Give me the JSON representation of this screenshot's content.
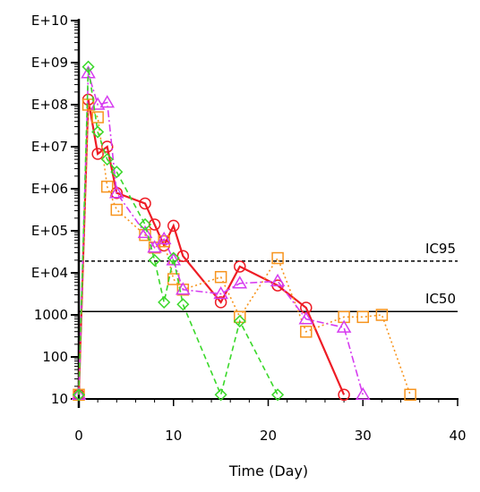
{
  "chart_data": {
    "type": "line",
    "title": "",
    "xlabel": "Time (Day)",
    "ylabel": "",
    "xlim": [
      0,
      40
    ],
    "ylim_log10": [
      1,
      10
    ],
    "y_scale": "log",
    "grid": false,
    "x_ticks": [
      0,
      10,
      20,
      30,
      40
    ],
    "x_tick_labels": [
      "0",
      "10",
      "20",
      "30",
      "40"
    ],
    "y_ticks": [
      1,
      2,
      3,
      4,
      5,
      6,
      7,
      8,
      9,
      10
    ],
    "y_tick_labels": [
      "10",
      "100",
      "1000",
      "E+04",
      "E+05",
      "E+06",
      "E+07",
      "E+08",
      "E+09",
      "E+10"
    ],
    "reference_lines": [
      {
        "label": "IC95",
        "log10_value": 4.28,
        "style": "dashed",
        "color": "#000000"
      },
      {
        "label": "IC50",
        "log10_value": 3.08,
        "style": "solid",
        "color": "#000000"
      }
    ],
    "series": [
      {
        "color": "#ee1c25",
        "marker": "circle",
        "line": "solid",
        "x": [
          0,
          1,
          2,
          3,
          4,
          7,
          8,
          9,
          10,
          11,
          15,
          17,
          21,
          24,
          28
        ],
        "log10_y": [
          1.1,
          8.12,
          6.83,
          7.0,
          5.9,
          5.65,
          5.15,
          4.65,
          5.12,
          4.4,
          3.3,
          4.15,
          3.7,
          3.17,
          1.1
        ]
      },
      {
        "color": "#f7941d",
        "marker": "square",
        "line": "dotted",
        "x": [
          0,
          1,
          2,
          3,
          4,
          7,
          8,
          9,
          10,
          11,
          15,
          17,
          21,
          24,
          28,
          30,
          32,
          35
        ],
        "log10_y": [
          1.1,
          8.0,
          7.7,
          6.05,
          5.5,
          4.9,
          4.6,
          4.75,
          3.85,
          3.6,
          3.9,
          2.95,
          4.35,
          2.6,
          2.95,
          2.95,
          3.0,
          1.1
        ]
      },
      {
        "color": "#d63cf0",
        "marker": "triangle",
        "line": "dashdot",
        "x": [
          0,
          1,
          2,
          3,
          4,
          7,
          8,
          9,
          10,
          11,
          15,
          17,
          21,
          24,
          28,
          30
        ],
        "log10_y": [
          1.1,
          8.75,
          8.0,
          8.05,
          5.9,
          4.95,
          4.6,
          4.8,
          4.3,
          3.6,
          3.5,
          3.75,
          3.8,
          2.9,
          2.7,
          1.1
        ]
      },
      {
        "color": "#3ad82a",
        "marker": "diamond",
        "line": "dashed",
        "x": [
          0,
          1,
          2,
          3,
          4,
          7,
          8,
          9,
          10,
          11,
          15,
          17,
          21
        ],
        "log10_y": [
          1.1,
          8.9,
          7.35,
          6.7,
          6.4,
          5.15,
          4.3,
          3.3,
          4.35,
          3.25,
          1.1,
          2.85,
          1.1
        ]
      }
    ],
    "annotations": [
      "IC95",
      "IC50"
    ]
  }
}
